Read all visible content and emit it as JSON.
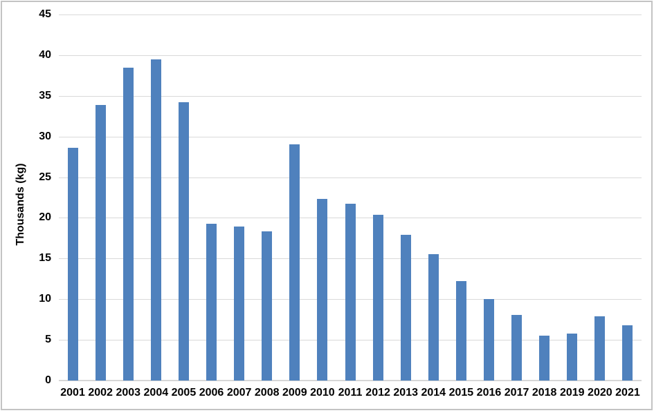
{
  "chart_data": {
    "type": "bar",
    "categories": [
      "2001",
      "2002",
      "2003",
      "2004",
      "2005",
      "2006",
      "2007",
      "2008",
      "2009",
      "2010",
      "2011",
      "2012",
      "2013",
      "2014",
      "2015",
      "2016",
      "2017",
      "2018",
      "2019",
      "2020",
      "2021"
    ],
    "values": [
      28.6,
      33.9,
      38.5,
      39.5,
      34.2,
      19.3,
      18.9,
      18.3,
      29.0,
      22.3,
      21.7,
      20.4,
      17.9,
      15.5,
      12.2,
      10.0,
      8.1,
      5.5,
      5.8,
      7.9,
      6.8
    ],
    "title": "",
    "xlabel": "",
    "ylabel": "Thousands (kg)",
    "ylim": [
      0,
      45
    ],
    "yticks": [
      0,
      5,
      10,
      15,
      20,
      25,
      30,
      35,
      40,
      45
    ],
    "grid": true,
    "legend": false,
    "bar_color": "#4f81bd",
    "gridline_color": "#d9d9d9",
    "axis_line_color": "#d6d6d6",
    "text_color": "#000000",
    "frame_border_color": "#c3c3c3",
    "background_color": "#ffffff"
  }
}
